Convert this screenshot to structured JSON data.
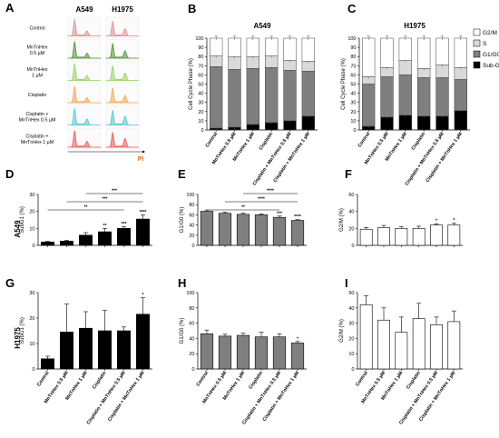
{
  "panel_letters": [
    "A",
    "B",
    "C",
    "D",
    "E",
    "F",
    "G",
    "H",
    "I"
  ],
  "row_labels": {
    "d": "A549",
    "g": "H1975"
  },
  "categories": [
    "Control",
    "MnTnHex 0.5 µM",
    "MnTnHex 1 µM",
    "Cisplatin",
    "Cisplatin + MnTnHex 0.5 µM",
    "Cisplatin + MnTnHex 1 µM"
  ],
  "histogram": {
    "col_titles": [
      "A549",
      "H1975"
    ],
    "row_labels": [
      "Control",
      "MnTnHex\n0.5 µM",
      "MnTnHex\n1 µM",
      "Cisplatin",
      "Cisplatin +\nMnTnHex 0.5 µM",
      "Cisplatin +\nMnTnHex 1 µM"
    ],
    "axis_label": "PI",
    "colors": [
      "#d98b8b",
      "#4b8a2a",
      "#8fcf5a",
      "#f2a24a",
      "#4cc2d8",
      "#e8504f"
    ]
  },
  "chart_data": [
    {
      "id": "B",
      "type": "bar",
      "stacked": true,
      "title": "A549",
      "ylabel": "Cell Cycle Phase (%)",
      "ylim": [
        0,
        100
      ],
      "yticks": [
        "0",
        "10",
        "20",
        "30",
        "40",
        "50",
        "60",
        "70",
        "80",
        "90",
        "100"
      ],
      "series": [
        {
          "name": "Sub-G1",
          "color": "#000000",
          "values": [
            2,
            3,
            6,
            8,
            10,
            15
          ]
        },
        {
          "name": "G1/G0",
          "color": "#7f7f7f",
          "values": [
            67,
            63,
            61,
            60,
            55,
            49
          ]
        },
        {
          "name": "S",
          "color": "#d9d9d9",
          "values": [
            12,
            14,
            13,
            13,
            11,
            11
          ]
        },
        {
          "name": "G2/M",
          "color": "#ffffff",
          "values": [
            19,
            20,
            20,
            19,
            24,
            25
          ]
        }
      ]
    },
    {
      "id": "C",
      "type": "bar",
      "stacked": true,
      "title": "H1975",
      "ylabel": "Cell Cycle Phase (%)",
      "ylim": [
        0,
        100
      ],
      "yticks": [
        "0",
        "10",
        "20",
        "30",
        "40",
        "50",
        "60",
        "70",
        "80",
        "90",
        "100"
      ],
      "series": [
        {
          "name": "Sub-G1",
          "color": "#000000",
          "values": [
            4,
            14,
            16,
            15,
            15,
            21
          ]
        },
        {
          "name": "G1/G0",
          "color": "#7f7f7f",
          "values": [
            46,
            44,
            44,
            42,
            42,
            34
          ]
        },
        {
          "name": "S",
          "color": "#d9d9d9",
          "values": [
            8,
            10,
            16,
            10,
            14,
            13
          ]
        },
        {
          "name": "G2/M",
          "color": "#ffffff",
          "values": [
            42,
            32,
            24,
            33,
            29,
            32
          ]
        }
      ],
      "legend": [
        "G2/M",
        "S",
        "G1/G0",
        "Sub-G1"
      ]
    },
    {
      "id": "D",
      "type": "bar",
      "ylabel": "SubG1 (%)",
      "ylim": [
        0,
        30
      ],
      "yticks": [
        "0",
        "10",
        "20",
        "30"
      ],
      "color": "#000000",
      "values": [
        2,
        2.5,
        6,
        8,
        10,
        15.5
      ],
      "errors": [
        0.3,
        0.4,
        1.5,
        2,
        1,
        2.5
      ],
      "marks": [
        "",
        "",
        "",
        "**",
        "***",
        "****"
      ],
      "brackets": [
        [
          "**",
          1,
          4
        ],
        [
          "***",
          2,
          5
        ],
        [
          "***",
          3,
          5
        ]
      ]
    },
    {
      "id": "E",
      "type": "bar",
      "ylabel": "G1/G0 (%)",
      "ylim": [
        0,
        100
      ],
      "yticks": [
        "0",
        "20",
        "40",
        "60",
        "80",
        "100"
      ],
      "color": "#7f7f7f",
      "values": [
        67,
        63,
        61,
        60,
        55,
        49
      ],
      "errors": [
        2.5,
        2,
        2,
        2,
        2.5,
        1.5
      ],
      "marks": [
        "",
        "",
        "",
        "",
        "***",
        "****"
      ],
      "brackets": [
        [
          "**",
          1,
          4
        ],
        [
          "****",
          2,
          5
        ],
        [
          "****",
          3,
          5
        ]
      ]
    },
    {
      "id": "F",
      "type": "bar",
      "ylabel": "G2/M (%)",
      "ylim": [
        0,
        60
      ],
      "yticks": [
        "0",
        "20",
        "40",
        "60"
      ],
      "color": "#ffffff",
      "values": [
        19,
        21,
        20,
        20,
        24,
        24
      ],
      "errors": [
        2,
        2.5,
        2,
        2.5,
        1.5,
        2
      ],
      "marks": [
        "",
        "",
        "",
        "",
        "*",
        "*"
      ]
    },
    {
      "id": "G",
      "type": "bar",
      "ylabel": "SubG1 (%)",
      "ylim": [
        0,
        30
      ],
      "yticks": [
        "0",
        "10",
        "20",
        "30"
      ],
      "color": "#000000",
      "values": [
        4,
        14.5,
        16,
        15,
        15,
        21.5
      ],
      "errors": [
        1,
        11,
        6.5,
        8,
        1.5,
        6.5
      ],
      "marks": [
        "",
        "",
        "",
        "",
        "",
        "*"
      ]
    },
    {
      "id": "H",
      "type": "bar",
      "ylabel": "G1/G0 (%)",
      "ylim": [
        0,
        100
      ],
      "yticks": [
        "0",
        "20",
        "40",
        "60",
        "80",
        "100"
      ],
      "color": "#7f7f7f",
      "values": [
        46,
        43,
        44,
        42,
        42,
        34
      ],
      "errors": [
        5,
        2.5,
        3,
        6,
        4,
        2
      ],
      "marks": [
        "",
        "",
        "",
        "",
        "",
        "*"
      ]
    },
    {
      "id": "I",
      "type": "bar",
      "ylabel": "G2/M (%)",
      "ylim": [
        0,
        50
      ],
      "yticks": [
        "0",
        "10",
        "20",
        "30",
        "40",
        "50"
      ],
      "color": "#ffffff",
      "values": [
        42,
        32,
        24,
        33,
        29,
        31
      ],
      "errors": [
        6,
        8,
        10,
        10,
        5,
        7
      ],
      "marks": [
        "",
        "",
        "",
        "",
        "",
        ""
      ]
    }
  ]
}
